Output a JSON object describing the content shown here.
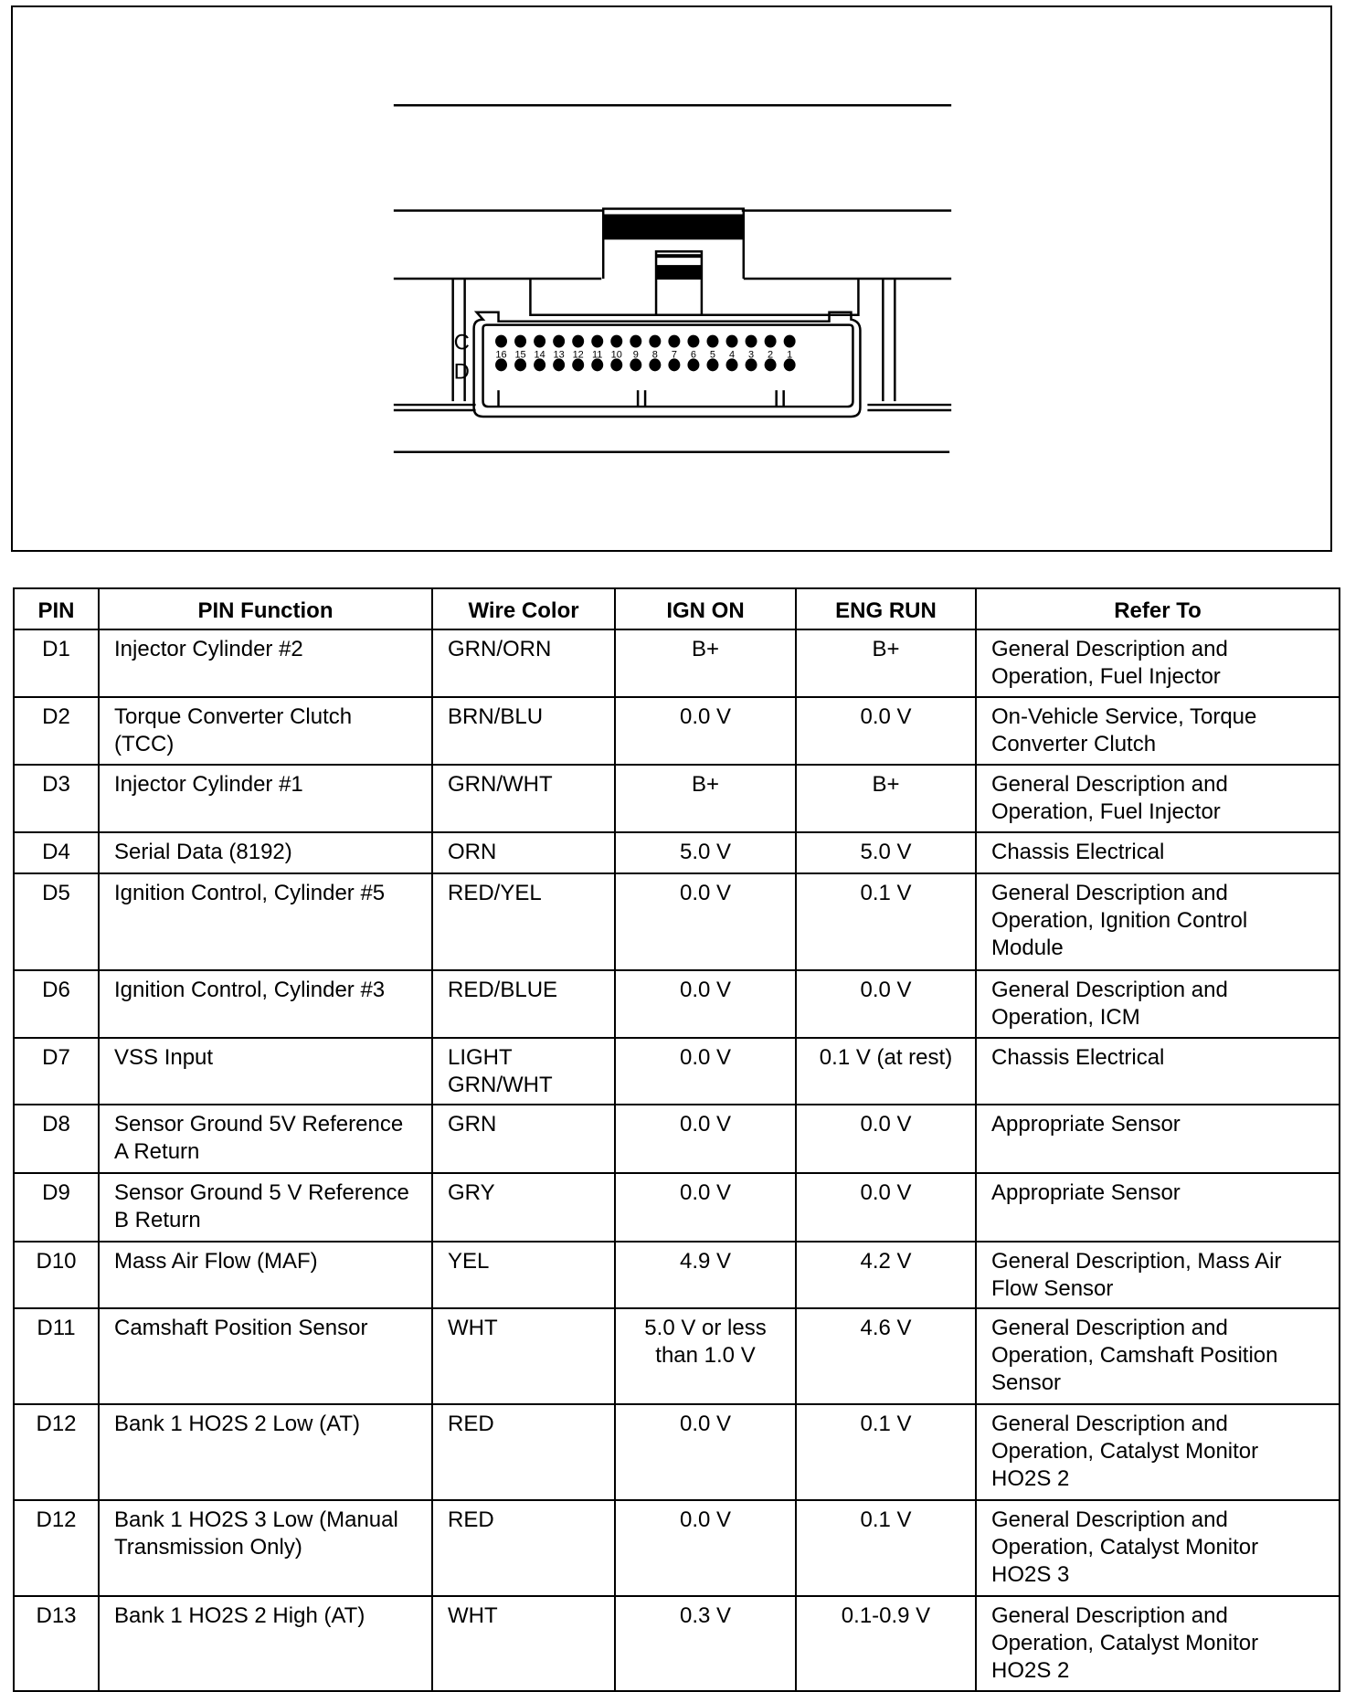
{
  "diagram": {
    "row_labels": [
      "C",
      "D"
    ],
    "pin_numbers": [
      "16",
      "15",
      "14",
      "13",
      "12",
      "11",
      "10",
      "9",
      "8",
      "7",
      "6",
      "5",
      "4",
      "3",
      "2",
      "1"
    ]
  },
  "table": {
    "headers": [
      "PIN",
      "PIN Function",
      "Wire Color",
      "IGN ON",
      "ENG RUN",
      "Refer To"
    ],
    "rows": [
      {
        "pin": "D1",
        "function": "Injector Cylinder #2",
        "wire": "GRN/ORN",
        "ign": "B+",
        "eng": "B+",
        "refer": "General Description and Operation, Fuel Injector"
      },
      {
        "pin": "D2",
        "function": "Torque Converter Clutch (TCC)",
        "wire": "BRN/BLU",
        "ign": "0.0 V",
        "eng": "0.0 V",
        "refer": "On-Vehicle Service, Torque Converter Clutch"
      },
      {
        "pin": "D3",
        "function": "Injector Cylinder #1",
        "wire": "GRN/WHT",
        "ign": "B+",
        "eng": "B+",
        "refer": "General Description and Operation, Fuel Injector"
      },
      {
        "pin": "D4",
        "function": "Serial Data (8192)",
        "wire": "ORN",
        "ign": "5.0 V",
        "eng": "5.0 V",
        "refer": "Chassis Electrical"
      },
      {
        "pin": "D5",
        "function": "Ignition Control, Cylinder #5",
        "wire": "RED/YEL",
        "ign": "0.0 V",
        "eng": "0.1 V",
        "refer": "General Description and Operation, Ignition Control Module"
      },
      {
        "pin": "D6",
        "function": "Ignition Control, Cylinder #3",
        "wire": "RED/BLUE",
        "ign": "0.0 V",
        "eng": "0.0 V",
        "refer": "General Description and Operation, ICM"
      },
      {
        "pin": "D7",
        "function": "VSS Input",
        "wire": "LIGHT GRN/WHT",
        "ign": "0.0 V",
        "eng": "0.1 V (at rest)",
        "refer": "Chassis Electrical"
      },
      {
        "pin": "D8",
        "function": "Sensor Ground 5V Reference A Return",
        "wire": "GRN",
        "ign": "0.0 V",
        "eng": "0.0 V",
        "refer": "Appropriate Sensor"
      },
      {
        "pin": "D9",
        "function": "Sensor Ground 5 V Reference B Return",
        "wire": "GRY",
        "ign": "0.0 V",
        "eng": "0.0 V",
        "refer": "Appropriate Sensor"
      },
      {
        "pin": "D10",
        "function": "Mass Air Flow (MAF)",
        "wire": "YEL",
        "ign": "4.9 V",
        "eng": "4.2 V",
        "refer": "General Description, Mass Air Flow Sensor"
      },
      {
        "pin": "D11",
        "function": "Camshaft Position Sensor",
        "wire": "WHT",
        "ign": "5.0 V or less than 1.0 V",
        "eng": "4.6 V",
        "refer": "General Description and Operation, Camshaft Position Sensor"
      },
      {
        "pin": "D12",
        "function": "Bank 1 HO2S 2 Low (AT)",
        "wire": "RED",
        "ign": "0.0 V",
        "eng": "0.1 V",
        "refer": "General Description and Operation, Catalyst Monitor HO2S 2"
      },
      {
        "pin": "D12",
        "function": "Bank 1 HO2S 3 Low (Manual Transmission Only)",
        "wire": "RED",
        "ign": "0.0 V",
        "eng": "0.1 V",
        "refer": "General Description and Operation, Catalyst Monitor HO2S 3"
      },
      {
        "pin": "D13",
        "function": "Bank 1 HO2S 2 High (AT)",
        "wire": "WHT",
        "ign": "0.3 V",
        "eng": "0.1-0.9 V",
        "refer": "General Description and Operation, Catalyst Monitor HO2S 2"
      }
    ]
  }
}
